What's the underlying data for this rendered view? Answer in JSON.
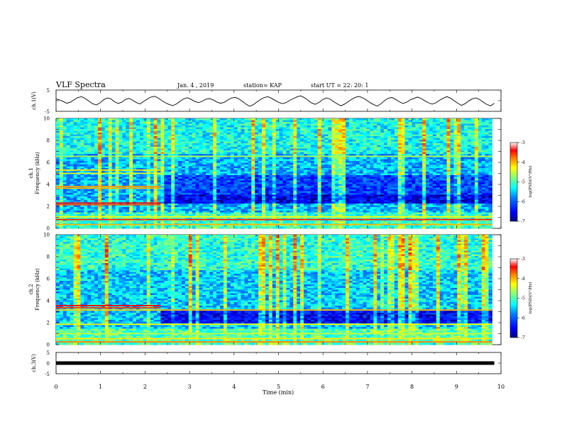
{
  "header": {
    "title": "VLF Spectra",
    "date": "Jan. 4 , 2019",
    "station": "station= KAP",
    "start_ut": "start UT = 22: 20: 1"
  },
  "chart_data": [
    {
      "type": "line",
      "name": "ch1-waveform",
      "ylabel": "ch.1(V)",
      "ylim": [
        -5,
        5
      ],
      "xlim": [
        0,
        10
      ],
      "yticks": [
        "5",
        "-5"
      ],
      "x_end": 9.85,
      "values": [
        0.8,
        0.3,
        -0.4,
        -1.2,
        -0.6,
        0.5,
        1.5,
        1.9,
        1.0,
        -0.2,
        -1.4,
        -2.0,
        -1.1,
        0.4,
        1.3,
        0.9,
        -0.5,
        -1.3,
        -0.7,
        0.6,
        1.1,
        0.2,
        -0.9,
        -1.5,
        -0.3,
        0.8,
        1.7,
        2.1,
        1.2,
        0.0,
        -1.0,
        -1.8,
        -2.3,
        -1.5,
        -0.2,
        0.9,
        1.4,
        0.6,
        -0.4,
        -0.9,
        -0.3,
        0.7,
        1.0,
        0.4,
        -0.6,
        -1.2,
        -0.8,
        0.3,
        1.2,
        1.6,
        0.9,
        -0.3,
        -1.6,
        -2.6,
        -1.9,
        -0.6,
        0.6,
        1.5,
        1.9,
        1.1,
        0.1,
        -0.8,
        -1.4,
        -0.9,
        0.2,
        1.0,
        1.8,
        2.3,
        1.4,
        0.2,
        -1.1,
        -1.7,
        -0.8,
        0.5,
        1.3,
        0.8,
        -0.4,
        -1.5,
        -2.4,
        -1.6,
        -0.4,
        0.7,
        1.6,
        2.0,
        1.3,
        0.3,
        -0.9,
        -1.9,
        -2.5,
        -1.4,
        0.1,
        1.2,
        1.5,
        0.6,
        -0.5,
        -1.3,
        -0.7,
        0.4,
        1.1,
        1.7,
        1.0,
        -0.1,
        -1.0,
        -1.6,
        -1.0,
        0.2,
        1.1,
        1.9,
        1.2,
        0.0,
        -1.2,
        -2.2,
        -1.4,
        -0.1,
        0.9,
        1.3,
        0.5,
        -0.7,
        -1.8,
        -2.4,
        -1.2
      ]
    },
    {
      "type": "heatmap",
      "name": "ch1-spectrogram",
      "ylabel": "ch.1\nFrequency (kHz)",
      "ylim": [
        0,
        10
      ],
      "xlim": [
        0,
        10
      ],
      "yticks": [
        "0",
        "2",
        "4",
        "6",
        "8",
        "10"
      ],
      "colorbar": {
        "label": "log(PSD)(V²/Hz)",
        "min": -7,
        "max": -3,
        "ticks": [
          "-3",
          "-4",
          "-5",
          "-6",
          "-7"
        ]
      },
      "background_level": -5.6,
      "dark_band_low_khz": [
        2.3,
        3.0
      ],
      "dark_band_high_khz": [
        3.1,
        4.9
      ],
      "quiet_after_min": 2.35,
      "lines_khz": [
        {
          "f": 6.55,
          "level": -4.6,
          "x0": 0,
          "x1": 9.8
        },
        {
          "f": 5.3,
          "level": -4.2,
          "x0": 0,
          "x1": 2.35
        },
        {
          "f": 5.0,
          "level": -4.4,
          "x0": 0,
          "x1": 2.35
        },
        {
          "f": 3.8,
          "level": -3.9,
          "x0": 0,
          "x1": 2.35
        },
        {
          "f": 3.65,
          "level": -4.0,
          "x0": 0,
          "x1": 2.35
        },
        {
          "f": 2.3,
          "level": -3.3,
          "x0": 0,
          "x1": 2.35
        },
        {
          "f": 2.15,
          "level": -3.6,
          "x0": 0,
          "x1": 2.35
        },
        {
          "f": 1.05,
          "level": -4.3,
          "x0": 0,
          "x1": 9.8
        },
        {
          "f": 0.8,
          "level": -3.4,
          "x0": 0,
          "x1": 9.8
        },
        {
          "f": 0.35,
          "level": -4.0,
          "x0": 0,
          "x1": 9.8
        }
      ]
    },
    {
      "type": "heatmap",
      "name": "ch2-spectrogram",
      "ylabel": "ch.2\nFrequency (kHz)",
      "ylim": [
        0,
        10
      ],
      "xlim": [
        0,
        10
      ],
      "yticks": [
        "0",
        "2",
        "4",
        "6",
        "8",
        "10"
      ],
      "colorbar": {
        "label": "log(PSD)(V²/Hz)",
        "min": -7,
        "max": -3,
        "ticks": [
          "-3",
          "-4",
          "-5",
          "-6",
          "-7"
        ]
      },
      "background_level": -5.5,
      "dark_band_low_khz": [
        2.0,
        3.2
      ],
      "dark_band_high_khz": [
        3.3,
        3.3
      ],
      "quiet_after_min": 2.35,
      "lines_khz": [
        {
          "f": 3.55,
          "level": -3.3,
          "x0": 0,
          "x1": 2.35
        },
        {
          "f": 3.35,
          "level": -3.5,
          "x0": 0,
          "x1": 2.35
        },
        {
          "f": 3.15,
          "level": -4.1,
          "x0": 0,
          "x1": 9.8
        },
        {
          "f": 1.85,
          "level": -4.3,
          "x0": 0,
          "x1": 9.8
        },
        {
          "f": 1.0,
          "level": -4.5,
          "x0": 0,
          "x1": 9.8
        },
        {
          "f": 0.55,
          "level": -4.2,
          "x0": 0,
          "x1": 9.8
        },
        {
          "f": 0.25,
          "level": -3.8,
          "x0": 0,
          "x1": 9.8
        }
      ]
    },
    {
      "type": "line",
      "name": "ch3-waveform",
      "ylabel": "ch.3(V)",
      "ylim": [
        -5,
        5
      ],
      "xlim": [
        0,
        10
      ],
      "yticks": [
        "5",
        "0",
        "-5"
      ],
      "x_end": 9.85,
      "constant_value": 0
    }
  ],
  "xaxis": {
    "label": "Time (min)",
    "ticks": [
      "0",
      "1",
      "2",
      "3",
      "4",
      "5",
      "6",
      "7",
      "8",
      "9",
      "10"
    ]
  },
  "colors": {
    "colormap": [
      "#00007f",
      "#0000ff",
      "#007fff",
      "#00ffff",
      "#7fff7f",
      "#ffff00",
      "#ff7f00",
      "#ff0000",
      "#7f0000"
    ]
  }
}
